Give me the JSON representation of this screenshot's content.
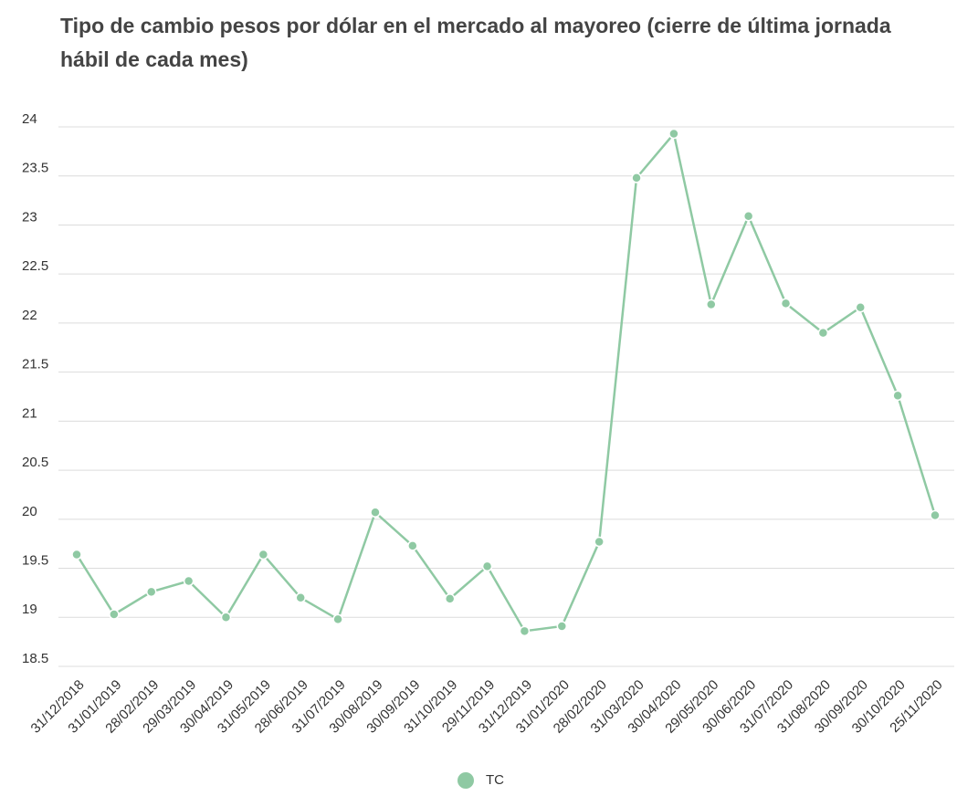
{
  "chart_data": {
    "type": "line",
    "title": "Tipo de cambio pesos por dólar en el mercado al mayoreo (cierre de última jornada hábil de cada mes)",
    "categories": [
      "31/12/2018",
      "31/01/2019",
      "28/02/2019",
      "29/03/2019",
      "30/04/2019",
      "31/05/2019",
      "28/06/2019",
      "31/07/2019",
      "30/08/2019",
      "30/09/2019",
      "31/10/2019",
      "29/11/2019",
      "31/12/2019",
      "31/01/2020",
      "28/02/2020",
      "31/03/2020",
      "30/04/2020",
      "29/05/2020",
      "30/06/2020",
      "31/07/2020",
      "31/08/2020",
      "30/09/2020",
      "30/10/2020",
      "25/11/2020"
    ],
    "series": [
      {
        "name": "TC",
        "color": "#8fc9a3",
        "values": [
          19.64,
          19.03,
          19.26,
          19.37,
          19.0,
          19.64,
          19.2,
          18.98,
          20.07,
          19.73,
          19.19,
          19.52,
          18.86,
          18.91,
          19.77,
          23.48,
          23.93,
          22.19,
          23.09,
          22.2,
          21.9,
          22.16,
          21.26,
          20.04
        ]
      }
    ],
    "ylim": [
      18.5,
      24
    ],
    "yticks": [
      18.5,
      19,
      19.5,
      20,
      20.5,
      21,
      21.5,
      22,
      22.5,
      23,
      23.5,
      24
    ],
    "grid": true
  }
}
